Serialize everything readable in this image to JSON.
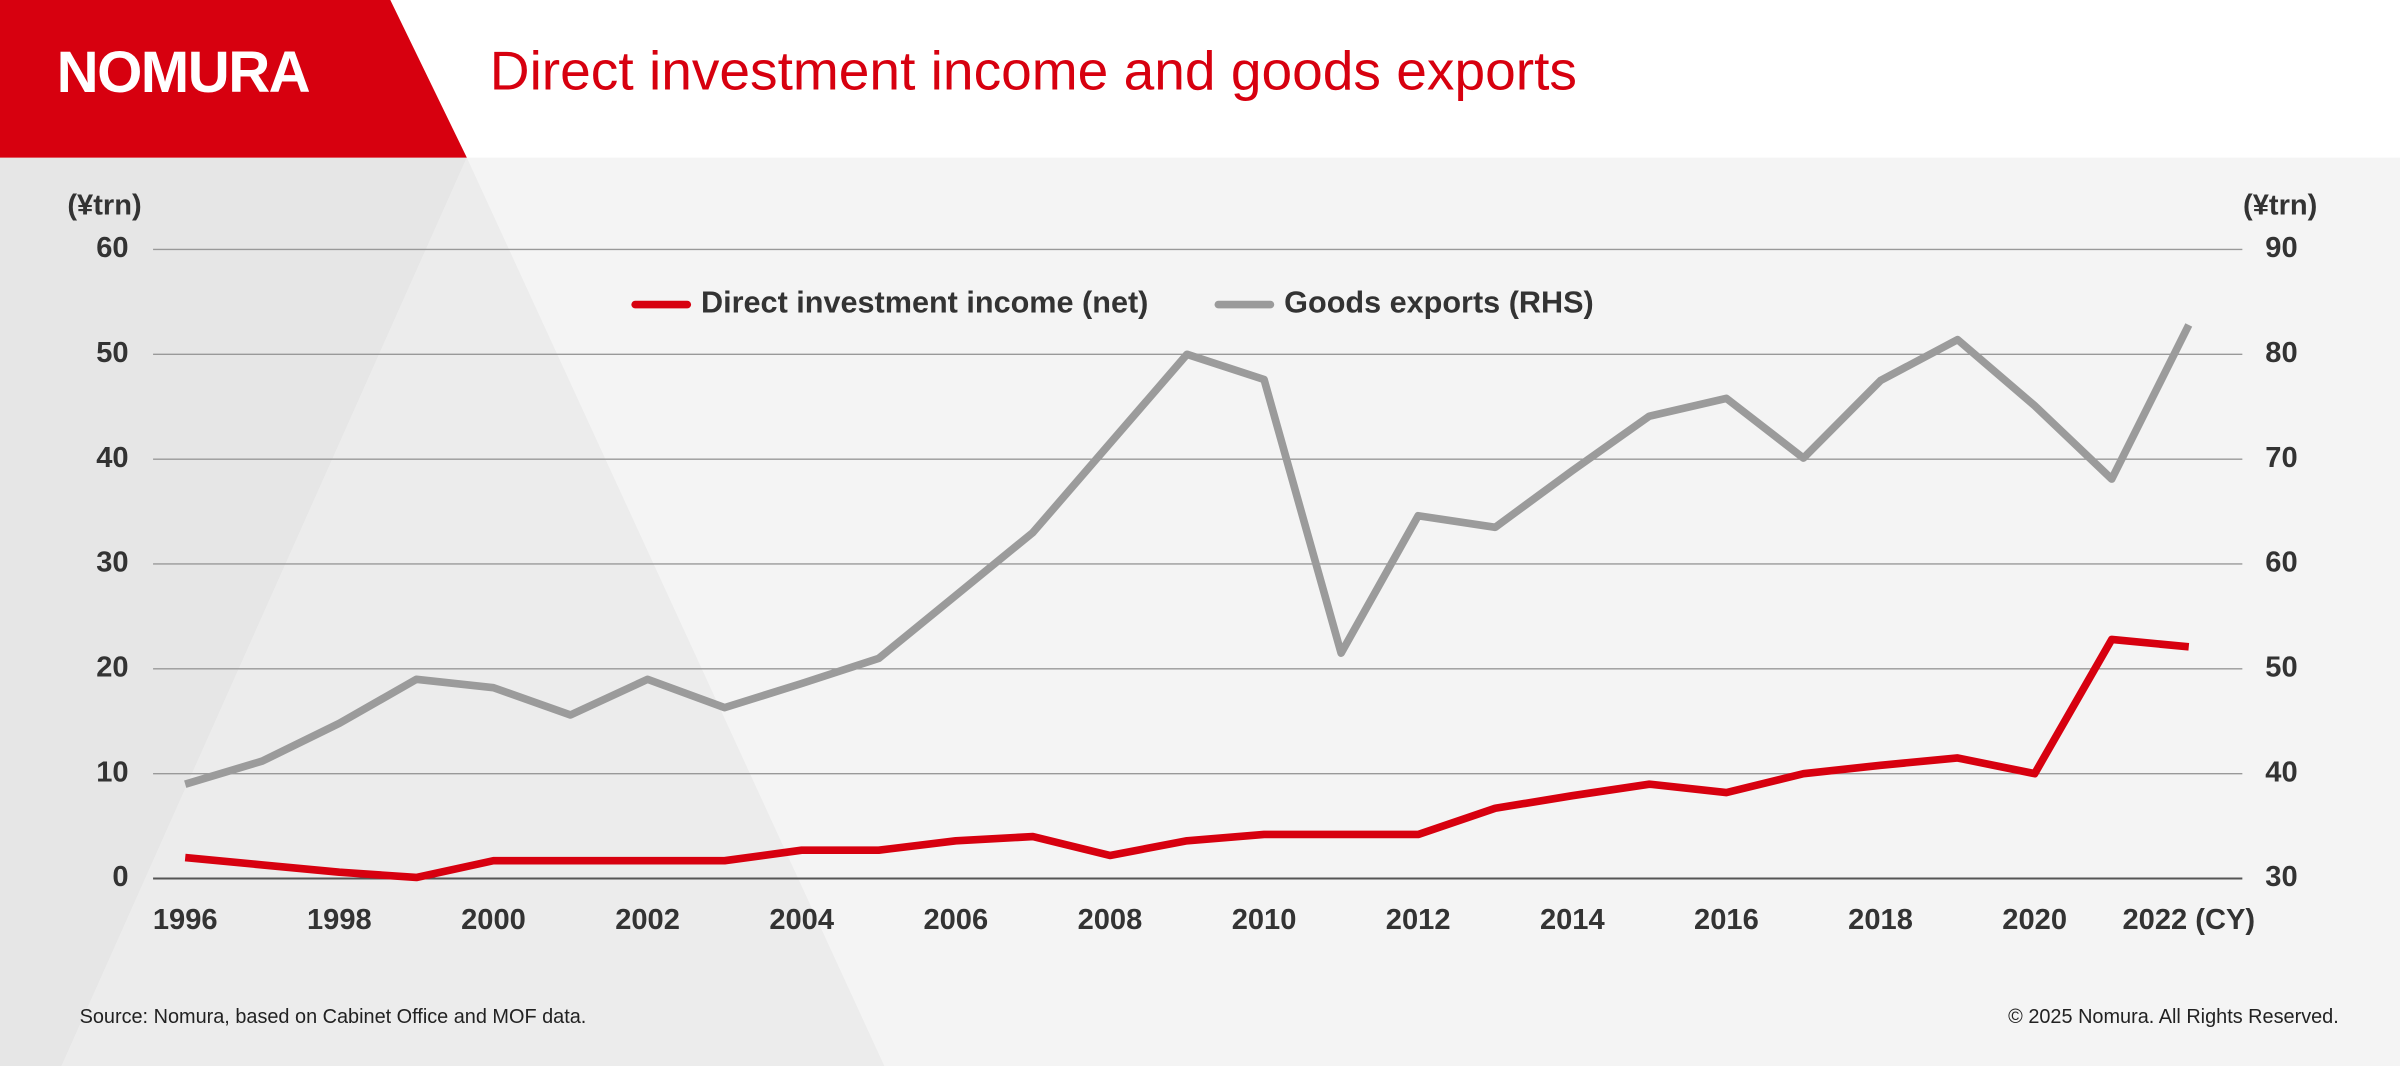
{
  "brand": "NOMURA",
  "chart_data": {
    "type": "line",
    "title": "Direct investment income and goods exports",
    "y_label": "(¥trn)",
    "y2_label": "(¥trn)",
    "x": [
      1996,
      1997,
      1998,
      1999,
      2000,
      2001,
      2002,
      2003,
      2004,
      2005,
      2006,
      2007,
      2008,
      2009,
      2010,
      2011,
      2012,
      2013,
      2014,
      2015,
      2016,
      2017,
      2018,
      2019,
      2020,
      2021,
      2022
    ],
    "xlim": [
      1996,
      2022
    ],
    "xticks": [
      1996,
      1998,
      2000,
      2002,
      2004,
      2006,
      2008,
      2010,
      2012,
      2014,
      2016,
      2018,
      2020,
      {
        "value": 2022,
        "label": "2022 (CY)"
      }
    ],
    "ylim": [
      0,
      60
    ],
    "yticks": [
      0,
      10,
      20,
      30,
      40,
      50,
      60
    ],
    "y2lim": [
      30,
      90
    ],
    "y2ticks": [
      30,
      40,
      50,
      60,
      70,
      80,
      90
    ],
    "grid": true,
    "legend": "upper center",
    "series": [
      {
        "name": "Direct investment income (net)",
        "color": "#d7000f",
        "values": [
          2.0,
          1.3,
          0.6,
          0.1,
          1.7,
          1.7,
          1.7,
          1.7,
          2.7,
          2.7,
          3.6,
          4.0,
          2.2,
          3.6,
          4.2,
          4.2,
          4.2,
          6.7,
          7.9,
          9.0,
          8.2,
          10.0,
          10.8,
          11.5,
          10.0,
          22.8,
          22.1
        ]
      },
      {
        "name": "Goods exports (RHS)",
        "color": "#9b9b9b",
        "axis": "y2",
        "values": [
          39,
          41.2,
          44.8,
          49,
          48.2,
          45.6,
          49,
          46.3,
          48.6,
          51,
          57,
          63,
          71.5,
          80,
          77.6,
          51.5,
          64.6,
          63.5,
          68.9,
          74.1,
          75.8,
          70.1,
          77.5,
          81.4,
          75.1,
          68.1,
          82.8
        ]
      }
    ],
    "source": "Source: Nomura, based on Cabinet Office and MOF data.",
    "copyright": "© 2025 Nomura. All Rights Reserved."
  }
}
